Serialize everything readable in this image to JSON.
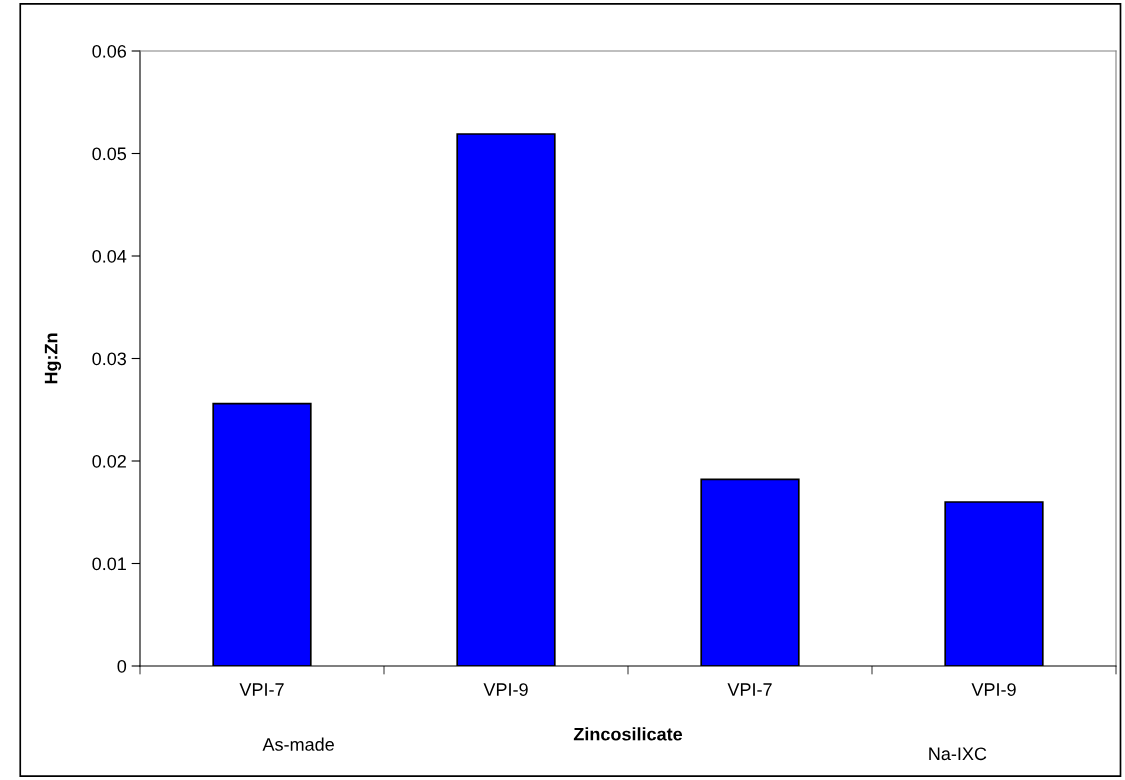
{
  "chart_data": {
    "type": "bar",
    "xlabel": "Zincosilicate",
    "ylabel": "Hg:Zn",
    "categories": [
      "VPI-7",
      "VPI-9",
      "VPI-7",
      "VPI-9"
    ],
    "values": [
      0.0256,
      0.0519,
      0.0182,
      0.016
    ],
    "color": "#0000ff",
    "ylim": [
      0,
      0.06
    ],
    "yticks": [
      0,
      0.01,
      0.02,
      0.03,
      0.04,
      0.05,
      0.06
    ],
    "grid": false,
    "legend": false,
    "annotations": [
      "As-made",
      "Na-IXC"
    ]
  }
}
